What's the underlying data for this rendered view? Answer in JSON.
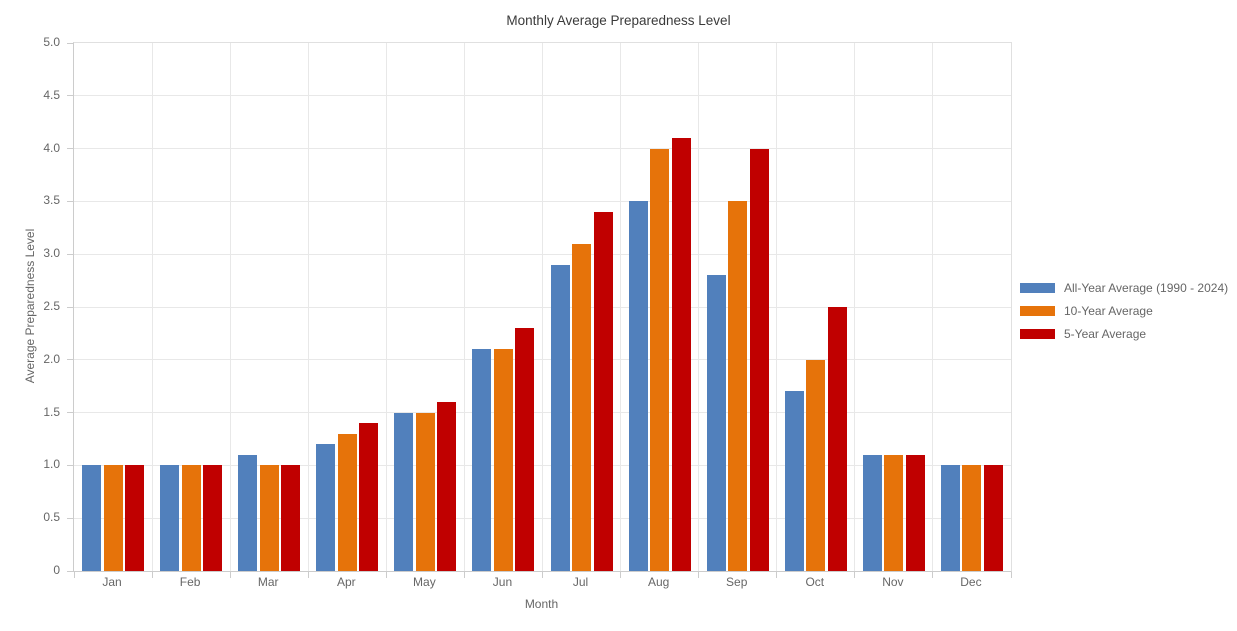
{
  "title": "Monthly Average Preparedness Level",
  "chart_data": {
    "type": "bar",
    "title": "Monthly Average Preparedness Level",
    "xlabel": "Month",
    "ylabel": "Average Preparedness Level",
    "categories": [
      "Jan",
      "Feb",
      "Mar",
      "Apr",
      "May",
      "Jun",
      "Jul",
      "Aug",
      "Sep",
      "Oct",
      "Nov",
      "Dec"
    ],
    "series": [
      {
        "name": "All-Year Average (1990 - 2024)",
        "color": "#5180BC",
        "values": [
          1.0,
          1.0,
          1.1,
          1.2,
          1.5,
          2.1,
          2.9,
          3.5,
          2.8,
          1.7,
          1.1,
          1.0
        ]
      },
      {
        "name": "10-Year Average",
        "color": "#E6730A",
        "values": [
          1.0,
          1.0,
          1.0,
          1.3,
          1.5,
          2.1,
          3.1,
          4.0,
          3.5,
          2.0,
          1.1,
          1.0
        ]
      },
      {
        "name": "5-Year Average",
        "color": "#C00000",
        "values": [
          1.0,
          1.0,
          1.0,
          1.4,
          1.6,
          2.3,
          3.4,
          4.1,
          4.0,
          2.5,
          1.1,
          1.0
        ]
      }
    ],
    "ylim": [
      0,
      5.0
    ],
    "ytick_step": 0.5,
    "ytick_labels": [
      "0",
      "0.5",
      "1.0",
      "1.5",
      "2.0",
      "2.5",
      "3.0",
      "3.5",
      "4.0",
      "4.5",
      "5.0"
    ],
    "grid": true,
    "legend_position": "right"
  }
}
